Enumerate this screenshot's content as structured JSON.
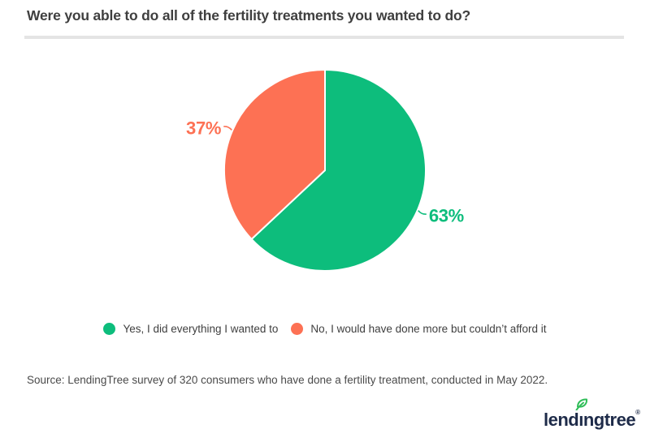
{
  "header": {
    "title": "Were you able to do all of the fertility treatments you wanted to do?"
  },
  "chart_data": {
    "type": "pie",
    "title": "Were you able to do all of the fertility treatments you wanted to do?",
    "slices": [
      {
        "label": "Yes, I did everything I wanted to",
        "value": 63,
        "display_value": "63%",
        "color": "#0dbd7c"
      },
      {
        "label": "No, I would have done more but couldn’t afford it",
        "value": 37,
        "display_value": "37%",
        "color": "#fd7154"
      }
    ],
    "value_unit": "%",
    "start_angle_deg": 0,
    "direction": "clockwise",
    "legend_position": "bottom"
  },
  "footer": {
    "source_note": "Source: LendingTree survey of 320 consumers who have done a fertility treatment, conducted in May 2022.",
    "logo_text": "lendıngtree",
    "logo_registered_mark": "®"
  },
  "colors": {
    "background": "#ffffff",
    "title_text": "#3f3f3f",
    "divider": "#e4e4e4",
    "legend_text": "#3f3f3f",
    "source_text": "#4a4a4a",
    "logo_navy": "#1e2b49",
    "leaf_green": "#2fbd58"
  }
}
